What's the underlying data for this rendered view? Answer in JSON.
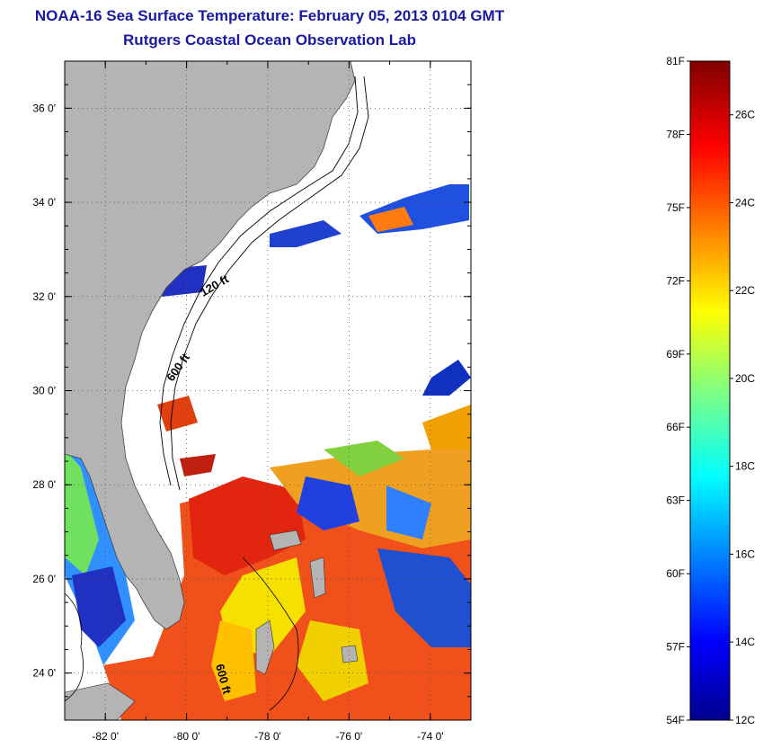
{
  "title": "NOAA-16 Sea Surface Temperature:  February 05, 2013 0104 GMT",
  "subtitle": "Rutgers Coastal Ocean Observation Lab",
  "map": {
    "lon_range": [
      -83,
      -73
    ],
    "lat_range": [
      23,
      37
    ],
    "lon_ticks": [
      "-82 0'",
      "-80 0'",
      "-78 0'",
      "-76 0'",
      "-74 0'"
    ],
    "lon_tick_values": [
      -82,
      -80,
      -78,
      -76,
      -74
    ],
    "lat_ticks": [
      "36 0'",
      "34 0'",
      "32 0'",
      "30 0'",
      "28 0'",
      "26 0'",
      "24 0'"
    ],
    "lat_tick_values": [
      36,
      34,
      32,
      30,
      28,
      26,
      24
    ],
    "isobath_labels": [
      "120 ft",
      "600 ft",
      "600 ft"
    ],
    "land_color": "#b4b4b4",
    "no_data_color": "#ffffff",
    "grid": "dotted"
  },
  "colorbar": {
    "fahrenheit_labels": [
      "81F",
      "78F",
      "75F",
      "72F",
      "69F",
      "66F",
      "63F",
      "60F",
      "57F",
      "54F"
    ],
    "celsius_labels": [
      "26C",
      "24C",
      "22C",
      "20C",
      "18C",
      "16C",
      "14C",
      "12C"
    ],
    "colormap": "jet",
    "range_f": [
      54,
      81
    ],
    "range_c": [
      12.2,
      27.2
    ]
  }
}
